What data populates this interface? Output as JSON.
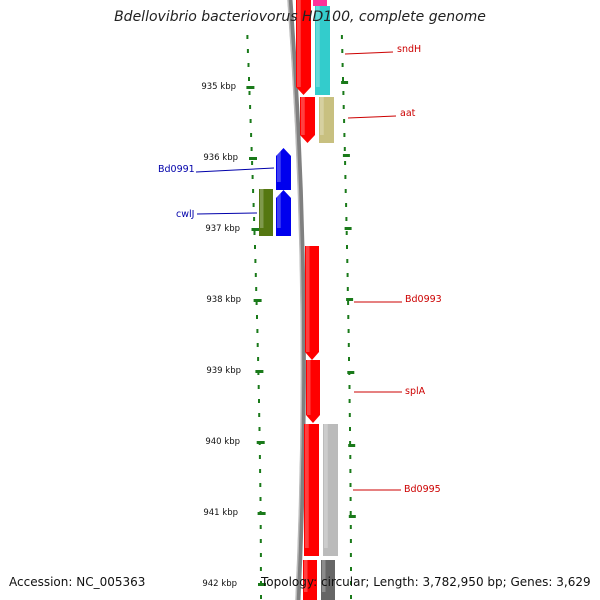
{
  "title": "Bdellovibrio bacteriovorus HD100, complete genome",
  "footer": {
    "accession": "Accession: NC_005363",
    "summary": "Topology: circular; Length: 3,782,950 bp; Genes: 3,629"
  },
  "colors": {
    "forward_label": "#cc0000",
    "reverse_label": "#0000aa",
    "backbone": "#808080",
    "ticks": "#1a7a1a"
  },
  "ticks": [
    "935 kbp",
    "936 kbp",
    "937 kbp",
    "938 kbp",
    "939 kbp",
    "940 kbp",
    "941 kbp",
    "942 kbp"
  ],
  "genes": [
    {
      "label": "sndH",
      "label_color": "#cc0000"
    },
    {
      "label": "aat",
      "label_color": "#cc0000"
    },
    {
      "label": "Bd0991",
      "label_color": "#0000aa"
    },
    {
      "label": "cwlJ",
      "label_color": "#0000aa"
    },
    {
      "label": "Bd0993",
      "label_color": "#cc0000"
    },
    {
      "label": "splA",
      "label_color": "#cc0000"
    },
    {
      "label": "Bd0995",
      "label_color": "#cc0000"
    }
  ]
}
